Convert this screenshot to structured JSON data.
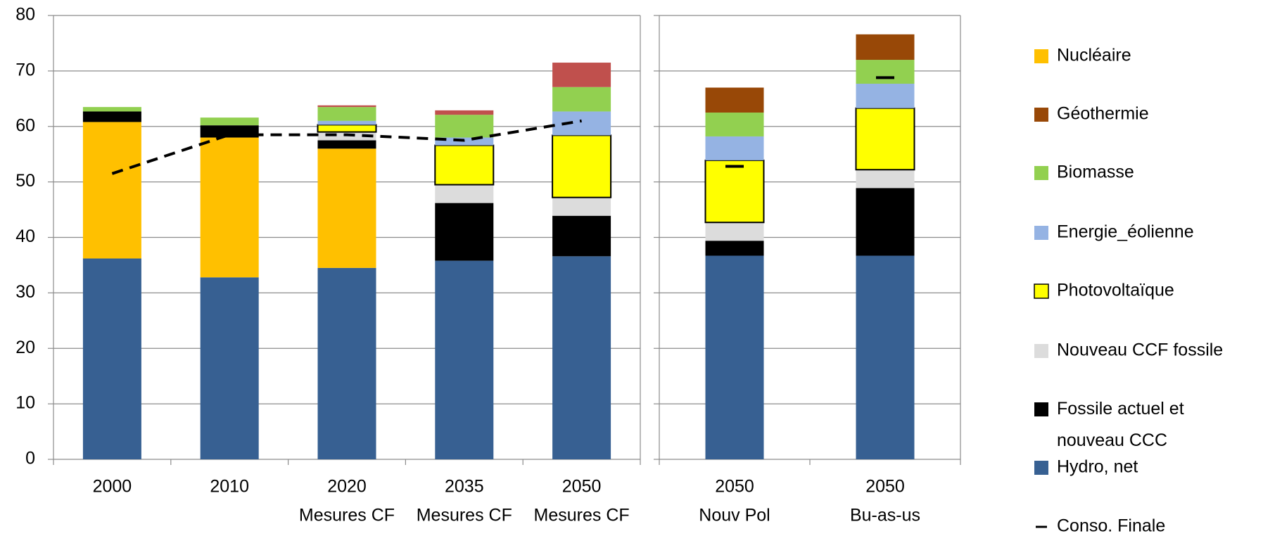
{
  "chart_data": {
    "type": "bar",
    "stacked": true,
    "categories": [
      [
        "2000"
      ],
      [
        "2010"
      ],
      [
        "2020",
        "Mesures CF"
      ],
      [
        "2035",
        "Mesures CF"
      ],
      [
        "2050",
        "Mesures CF"
      ],
      [
        "2050",
        "Nouv Pol"
      ],
      [
        "2050",
        "Bu-as-us"
      ]
    ],
    "ylim": [
      0,
      80
    ],
    "yticks": [
      0,
      10,
      20,
      30,
      40,
      50,
      60,
      70,
      80
    ],
    "grid": true,
    "series": [
      {
        "name": "Hydro, net",
        "color": "#376092",
        "values": [
          36.2,
          32.8,
          34.5,
          35.8,
          36.6,
          36.7,
          36.7
        ]
      },
      {
        "name": "Nucléaire",
        "color": "#ffc000",
        "values": [
          24.6,
          25.2,
          21.5,
          0,
          0,
          0,
          0
        ]
      },
      {
        "name": "Fossile actuel et nouveau CCC",
        "color": "#000000",
        "values": [
          1.9,
          2.2,
          1.5,
          10.4,
          7.3,
          2.7,
          12.2
        ]
      },
      {
        "name": "Nouveau CCF fossile",
        "color": "#dcdcdc",
        "values": [
          0,
          0,
          1.5,
          3.3,
          3.3,
          3.3,
          3.3
        ]
      },
      {
        "name": "Photovoltaïque",
        "color": "#ffff00",
        "outline": "#000000",
        "values": [
          0,
          0,
          1.3,
          7.1,
          11.2,
          11.2,
          11.1
        ]
      },
      {
        "name": "Energie_éolienne",
        "color": "#95b3e3",
        "values": [
          0,
          0,
          0.7,
          1.4,
          4.3,
          4.3,
          4.4
        ]
      },
      {
        "name": "Biomasse",
        "color": "#92d050",
        "values": [
          0.8,
          1.4,
          2.5,
          4.1,
          4.4,
          4.3,
          4.3
        ]
      },
      {
        "name": "Géothermie",
        "color": "#984807",
        "values": [
          0,
          0,
          0,
          0,
          0,
          4.5,
          4.6
        ]
      },
      {
        "color": "#c0504d",
        "values": [
          0,
          0,
          0.3,
          0.8,
          4.4,
          0,
          0
        ]
      },
      {
        "name": "Conso. Finale",
        "type": "line",
        "color": "#000000",
        "dashed": true,
        "values": [
          51.5,
          58.5,
          58.5,
          57.5,
          61,
          52.8,
          68.8
        ]
      }
    ]
  }
}
